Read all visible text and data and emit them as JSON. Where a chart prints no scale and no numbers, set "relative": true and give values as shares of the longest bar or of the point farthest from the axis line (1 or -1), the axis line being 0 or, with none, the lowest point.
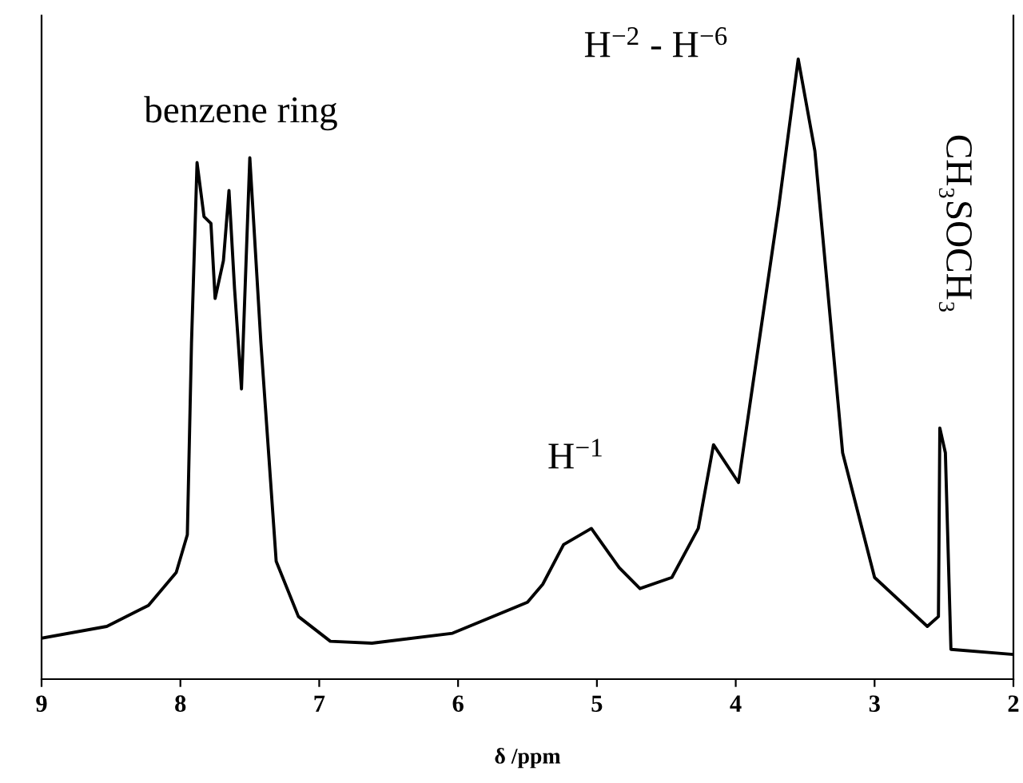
{
  "chart_data": {
    "type": "line",
    "relative": true,
    "xlabel": "δ /ppm",
    "xlim": [
      9,
      2
    ],
    "xticks": [
      9,
      8,
      7,
      6,
      5,
      4,
      3,
      2
    ],
    "series": [
      {
        "color": "#000000",
        "x": [
          9.0,
          8.53,
          8.23,
          8.03,
          7.95,
          7.92,
          7.88,
          7.83,
          7.78,
          7.75,
          7.69,
          7.65,
          7.61,
          7.56,
          7.5,
          7.42,
          7.31,
          7.15,
          6.92,
          6.62,
          6.04,
          5.5,
          5.39,
          5.24,
          5.04,
          4.84,
          4.69,
          4.46,
          4.27,
          4.16,
          3.98,
          3.89,
          3.69,
          3.55,
          3.43,
          3.23,
          3.0,
          2.62,
          2.54,
          2.53,
          2.49,
          2.45,
          2.01
        ],
        "values": [
          0.066,
          0.085,
          0.119,
          0.172,
          0.233,
          0.542,
          0.833,
          0.746,
          0.735,
          0.614,
          0.675,
          0.788,
          0.63,
          0.468,
          0.841,
          0.542,
          0.19,
          0.101,
          0.061,
          0.058,
          0.074,
          0.124,
          0.153,
          0.217,
          0.243,
          0.18,
          0.146,
          0.164,
          0.243,
          0.378,
          0.317,
          0.455,
          0.762,
          1.0,
          0.852,
          0.365,
          0.164,
          0.085,
          0.101,
          0.405,
          0.365,
          0.048,
          0.04
        ]
      }
    ],
    "annotations": [
      {
        "text": "benzene ring",
        "x": 7.5,
        "y": 0.841
      },
      {
        "text": "H$^{−2}$ - H$^{−6}$",
        "x": 3.55,
        "y": 1.0
      },
      {
        "text": "H$^{−1}$",
        "x": 5.04,
        "y": 0.243
      },
      "CH₃SOCH₃"
    ],
    "grid": false,
    "legend": false,
    "marker": "none",
    "line_style": "solid"
  }
}
